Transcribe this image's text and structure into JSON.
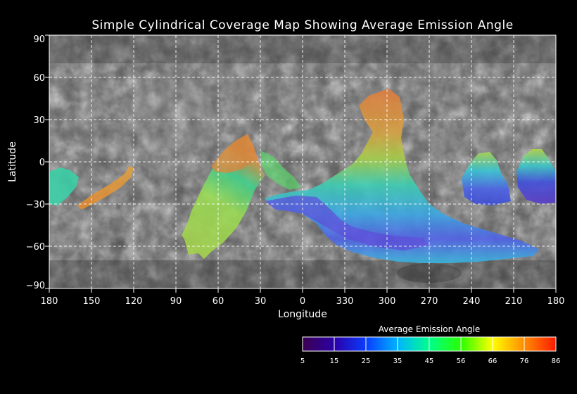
{
  "title": "Simple Cylindrical Coverage Map Showing Average Emission Angle",
  "map": {
    "x_axis": {
      "label": "Longitude",
      "ticks": [
        "180",
        "150",
        "120",
        "90",
        "60",
        "30",
        "0",
        "330",
        "300",
        "270",
        "240",
        "210",
        "180"
      ]
    },
    "y_axis": {
      "label": "Latitude",
      "ticks": [
        "90",
        "60",
        "30",
        "0",
        "−30",
        "−60",
        "−90"
      ],
      "range": [
        -90,
        90
      ]
    },
    "grid": true,
    "basemap": "grayscale planetary surface mosaic",
    "colors": {
      "background": "#000000",
      "grid_line": "#ffffff",
      "text": "#ffffff"
    },
    "coverage_patches": [
      {
        "region": "west edge near 180 longitude, near equator",
        "emission_angle_color": "cyan-green"
      },
      {
        "region": "elongated strip from about 165 to 120 longitude, -30 to -5 latitude",
        "emission_angle_color": "orange"
      },
      {
        "region": "broad swath from about 80 to 25 longitude, -65 to +20 latitude",
        "emission_angle_color": "green-yellow with orange upper band"
      },
      {
        "region": "large fan from about 0 to 240 longitude (east), -70 to +45 latitude",
        "emission_angle_color": "blue-violet base, cyan-green center, orange top lobe"
      },
      {
        "region": "patch near 250 to 230 longitude, -30 to +5 latitude",
        "emission_angle_color": "blue with yellow-green top"
      },
      {
        "region": "patch near 205 to 180 longitude, -30 to +10 latitude",
        "emission_angle_color": "violet-blue with yellow-green top"
      }
    ]
  },
  "legend": {
    "title": "Average Emission Angle",
    "ticks": [
      "5",
      "15",
      "25",
      "35",
      "45",
      "56",
      "66",
      "76",
      "86"
    ],
    "colors": [
      "#3c0050",
      "#2a00a8",
      "#0a3cff",
      "#00b4ff",
      "#00ff8c",
      "#28ff00",
      "#ffff00",
      "#ff8c00",
      "#ff1a00"
    ]
  }
}
